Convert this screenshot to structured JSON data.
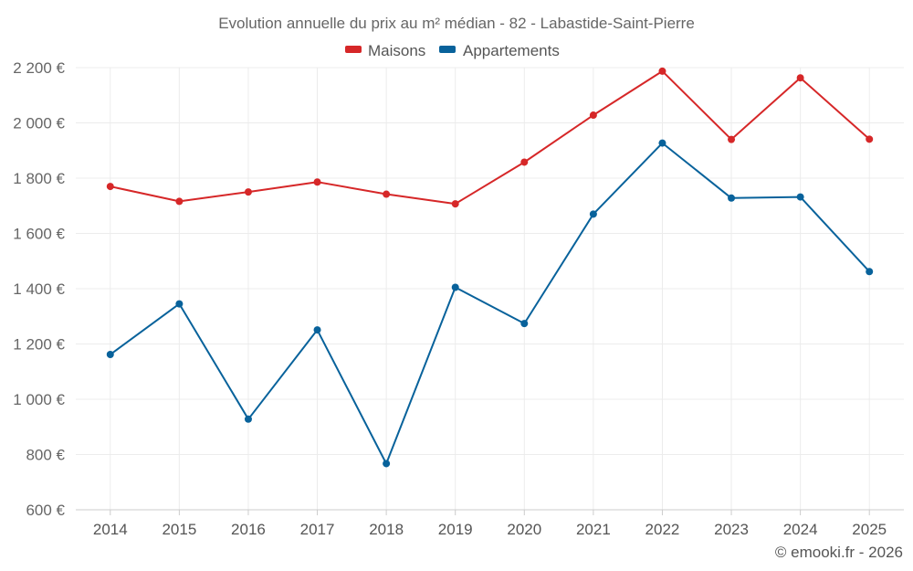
{
  "chart_data": {
    "type": "line",
    "title": "Evolution annuelle du prix au m² médian - 82 - Labastide-Saint-Pierre",
    "categories": [
      "2014",
      "2015",
      "2016",
      "2017",
      "2018",
      "2019",
      "2020",
      "2021",
      "2022",
      "2023",
      "2024",
      "2025"
    ],
    "series": [
      {
        "name": "Maisons",
        "color": "#d62728",
        "values": [
          1770,
          1716,
          1750,
          1786,
          1742,
          1707,
          1858,
          2028,
          2187,
          1940,
          2163,
          1941
        ]
      },
      {
        "name": "Appartements",
        "color": "#08629b",
        "values": [
          1162,
          1345,
          928,
          1251,
          767,
          1405,
          1274,
          1670,
          1927,
          1728,
          1732,
          1462
        ]
      }
    ],
    "ylim": [
      600,
      2200
    ],
    "yticks": [
      600,
      800,
      1000,
      1200,
      1400,
      1600,
      1800,
      2000,
      2200
    ],
    "ytick_labels": [
      "600 €",
      "800 €",
      "1 000 €",
      "1 200 €",
      "1 400 €",
      "1 600 €",
      "1 800 €",
      "2 000 €",
      "2 200 €"
    ],
    "legend_position": "top-center",
    "grid": true,
    "xlabel": "",
    "ylabel": ""
  },
  "credit": "© emooki.fr - 2026"
}
